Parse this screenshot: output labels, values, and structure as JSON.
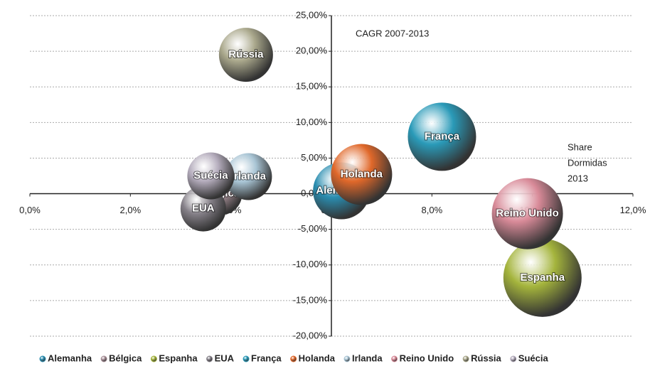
{
  "chart_data": {
    "type": "bubble",
    "annotations": [
      "CAGR 2007-2013",
      "Share",
      "Dormidas",
      "2013"
    ],
    "xlim": [
      0,
      12
    ],
    "xticks": [
      {
        "value": 0,
        "label": "0,0%"
      },
      {
        "value": 2,
        "label": "2,0%"
      },
      {
        "value": 4,
        "label": "4,0%"
      },
      {
        "value": 6,
        "label": "6,0%"
      },
      {
        "value": 8,
        "label": "8,0%"
      },
      {
        "value": 10,
        "label": "10,0%"
      },
      {
        "value": 12,
        "label": "12,0%"
      }
    ],
    "ylim": [
      -20,
      25
    ],
    "yticks": [
      {
        "value": -20,
        "label": "-20,00%"
      },
      {
        "value": -15,
        "label": "-15,00%"
      },
      {
        "value": -10,
        "label": "-10,00%"
      },
      {
        "value": -5,
        "label": "-5,00%"
      },
      {
        "value": 0,
        "label": "0,00%"
      },
      {
        "value": 5,
        "label": "5,00%"
      },
      {
        "value": 10,
        "label": "10,00%"
      },
      {
        "value": 15,
        "label": "15,00%"
      },
      {
        "value": 20,
        "label": "20,00%"
      },
      {
        "value": 25,
        "label": "25,00%"
      }
    ],
    "grid": true,
    "legend": "bottom",
    "series": [
      {
        "name": "Alemanha",
        "color": "#2a8db0",
        "x": [
          6.2
        ],
        "values": [
          0.4
        ],
        "sizes": [
          40
        ]
      },
      {
        "name": "Bélgica",
        "color": "#a89098",
        "x": [
          3.8
        ],
        "values": [
          0
        ],
        "sizes": [
          30
        ]
      },
      {
        "name": "Espanha",
        "color": "#a4b43c",
        "x": [
          10.2
        ],
        "values": [
          -11.8
        ],
        "sizes": [
          55
        ]
      },
      {
        "name": "EUA",
        "color": "#858088",
        "x": [
          3.45
        ],
        "values": [
          -2.1
        ],
        "sizes": [
          32
        ]
      },
      {
        "name": "França",
        "color": "#2a9ab8",
        "x": [
          8.2
        ],
        "values": [
          8
        ],
        "sizes": [
          48
        ]
      },
      {
        "name": "Holanda",
        "color": "#e0682a",
        "x": [
          6.6
        ],
        "values": [
          2.7
        ],
        "sizes": [
          43
        ]
      },
      {
        "name": "Irlanda",
        "color": "#a8c4d4",
        "x": [
          4.35
        ],
        "values": [
          2.4
        ],
        "sizes": [
          33
        ]
      },
      {
        "name": "Reino Unido",
        "color": "#d88a98",
        "x": [
          9.9
        ],
        "values": [
          -2.8
        ],
        "sizes": [
          50
        ]
      },
      {
        "name": "Rússia",
        "color": "#aaa88c",
        "x": [
          4.3
        ],
        "values": [
          19.5
        ],
        "sizes": [
          38
        ]
      },
      {
        "name": "Suécia",
        "color": "#b4acbc",
        "x": [
          3.6
        ],
        "values": [
          2.5
        ],
        "sizes": [
          33
        ]
      }
    ]
  }
}
